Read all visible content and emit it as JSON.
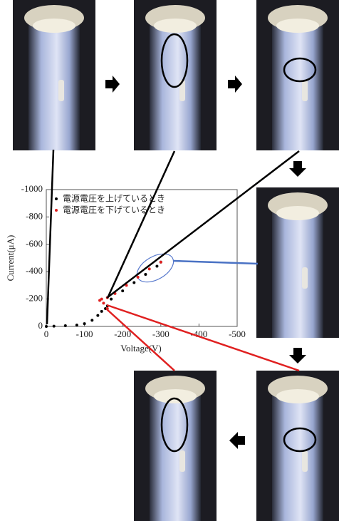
{
  "chart_data": {
    "type": "scatter",
    "xlabel": "Voltage(V)",
    "ylabel": "Current(μA)",
    "xlim": [
      0,
      -500
    ],
    "ylim": [
      0,
      -1000
    ],
    "xticks": [
      0,
      -100,
      -200,
      -300,
      -400,
      -500
    ],
    "yticks": [
      0,
      -200,
      -400,
      -600,
      -800,
      -1000
    ],
    "series": [
      {
        "name": "電源電圧を上げているとき",
        "color": "#000000",
        "x": [
          0,
          -20,
          -50,
          -80,
          -100,
          -120,
          -135,
          -145,
          -155,
          -160,
          -170,
          -200,
          -230,
          -260,
          -290,
          -300
        ],
        "values": [
          0,
          -2,
          -5,
          -10,
          -20,
          -45,
          -80,
          -110,
          -130,
          -150,
          -200,
          -260,
          -320,
          -380,
          -440,
          -470
        ]
      },
      {
        "name": "電源電圧を下げているとき",
        "color": "#e02020",
        "x": [
          -300,
          -270,
          -240,
          -210,
          -180,
          -160,
          -145,
          -140,
          -150,
          -160
        ],
        "values": [
          -470,
          -420,
          -360,
          -300,
          -240,
          -210,
          -200,
          -190,
          -170,
          -130
        ]
      }
    ]
  }
}
